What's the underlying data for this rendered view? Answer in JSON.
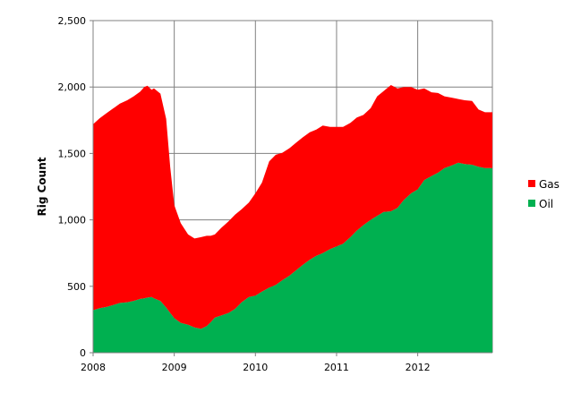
{
  "chart_data": {
    "type": "area",
    "stacked": true,
    "title": "",
    "xlabel": "",
    "ylabel": "Rig Count",
    "xlim": [
      2008.0,
      2012.92
    ],
    "ylim": [
      0,
      2500
    ],
    "x_ticks": [
      "2008",
      "2009",
      "2010",
      "2011",
      "2012"
    ],
    "y_ticks": [
      "0",
      "500",
      "1,000",
      "1,500",
      "2,000",
      "2,500"
    ],
    "grid": true,
    "legend_position": "right",
    "x": [
      2008.0,
      2008.08,
      2008.17,
      2008.25,
      2008.33,
      2008.42,
      2008.5,
      2008.58,
      2008.63,
      2008.67,
      2008.72,
      2008.75,
      2008.83,
      2008.9,
      2008.95,
      2009.0,
      2009.08,
      2009.17,
      2009.25,
      2009.33,
      2009.4,
      2009.45,
      2009.5,
      2009.58,
      2009.67,
      2009.75,
      2009.83,
      2009.92,
      2010.0,
      2010.08,
      2010.17,
      2010.25,
      2010.33,
      2010.42,
      2010.5,
      2010.58,
      2010.67,
      2010.75,
      2010.83,
      2010.92,
      2011.0,
      2011.08,
      2011.17,
      2011.25,
      2011.33,
      2011.42,
      2011.5,
      2011.58,
      2011.67,
      2011.75,
      2011.83,
      2011.92,
      2012.0,
      2012.08,
      2012.17,
      2012.25,
      2012.33,
      2012.42,
      2012.5,
      2012.58,
      2012.67,
      2012.75,
      2012.83,
      2012.92
    ],
    "series": [
      {
        "name": "Oil",
        "color": "#00b050",
        "values": [
          320,
          335,
          345,
          360,
          375,
          380,
          390,
          405,
          410,
          415,
          420,
          410,
          390,
          340,
          300,
          260,
          225,
          210,
          190,
          180,
          200,
          230,
          265,
          280,
          300,
          330,
          380,
          420,
          430,
          460,
          490,
          510,
          545,
          580,
          620,
          660,
          700,
          730,
          750,
          780,
          800,
          820,
          870,
          920,
          960,
          1000,
          1030,
          1060,
          1065,
          1090,
          1150,
          1200,
          1230,
          1300,
          1330,
          1355,
          1390,
          1410,
          1430,
          1420,
          1415,
          1400,
          1390,
          1390
        ]
      },
      {
        "name": "Gas",
        "color": "#ff0000",
        "values": [
          1400,
          1430,
          1460,
          1480,
          1500,
          1520,
          1540,
          1560,
          1590,
          1595,
          1560,
          1580,
          1560,
          1420,
          1100,
          850,
          750,
          680,
          670,
          690,
          680,
          650,
          625,
          660,
          690,
          710,
          700,
          710,
          770,
          820,
          950,
          980,
          960,
          960,
          960,
          960,
          960,
          950,
          960,
          920,
          900,
          880,
          860,
          850,
          830,
          840,
          900,
          910,
          950,
          900,
          850,
          800,
          750,
          690,
          630,
          600,
          540,
          510,
          480,
          480,
          480,
          430,
          420,
          420
        ]
      }
    ]
  }
}
